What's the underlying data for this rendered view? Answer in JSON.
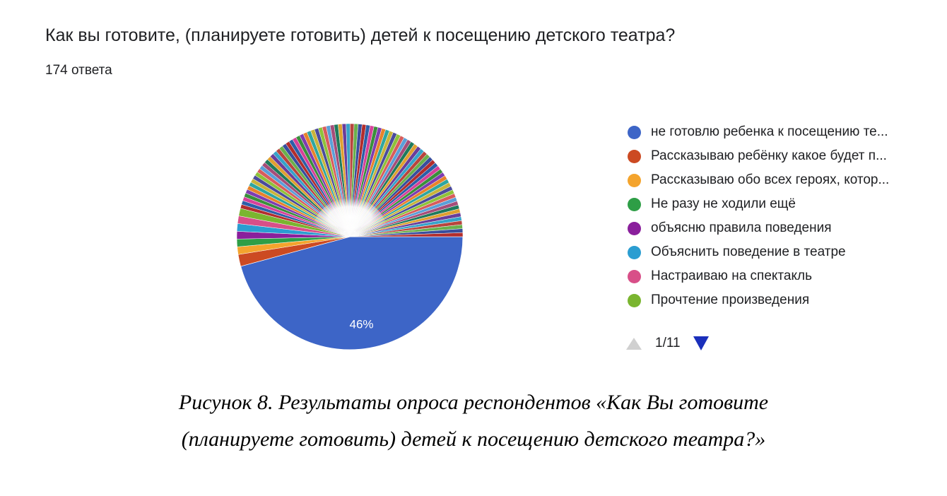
{
  "question": {
    "title": "Как вы готовите, (планируете готовить) детей к посещению детского театра?",
    "responses": "174 ответа"
  },
  "chart_data": {
    "type": "pie",
    "total_responses": 174,
    "slices": [
      {
        "label": "не готовлю ребенка к посещению те...",
        "percent": 46,
        "color": "#3d65c7",
        "shown_label": "46%"
      },
      {
        "label": "Рассказываю ребёнку какое будет п...",
        "percent": 1.7,
        "color": "#cc4a22"
      },
      {
        "label": "Рассказываю обо всех героях, котор...",
        "percent": 1.1,
        "color": "#f4a42d"
      },
      {
        "label": "Не разу не ходили ещё",
        "percent": 1.1,
        "color": "#2e9e46"
      },
      {
        "label": "объясню правила поведения",
        "percent": 1.1,
        "color": "#8a1f9c"
      },
      {
        "label": "Объяснить поведение в театре",
        "percent": 1.1,
        "color": "#2b9dd1"
      },
      {
        "label": "Настраиваю на спектакль",
        "percent": 1.1,
        "color": "#d84f88"
      },
      {
        "label": "Прочтение произведения",
        "percent": 1.1,
        "color": "#7ab52f"
      }
    ],
    "other_small_slices": 81,
    "other_slice_percent": 0.57,
    "other_slice_colors": [
      "#b22d2d",
      "#2c5fa8",
      "#d6419a",
      "#3a8f3a",
      "#7f3cb0",
      "#e8832b",
      "#2fa6a0",
      "#c8b43a",
      "#4b4b9c",
      "#8fc23a",
      "#d85c5c",
      "#5a9fd8",
      "#a64d79",
      "#1f7a5c",
      "#e0a030",
      "#6a3d9a",
      "#36a3c9",
      "#b8453e",
      "#6ab04c",
      "#384e9e"
    ],
    "legend_placement": "right"
  },
  "legend": {
    "pager": "1/11"
  },
  "caption": {
    "line1": "Рисунок 8. Результаты опроса респондентов «Как Вы готовите",
    "line2": "(планируете готовить) детей к посещению детского театра?»"
  }
}
